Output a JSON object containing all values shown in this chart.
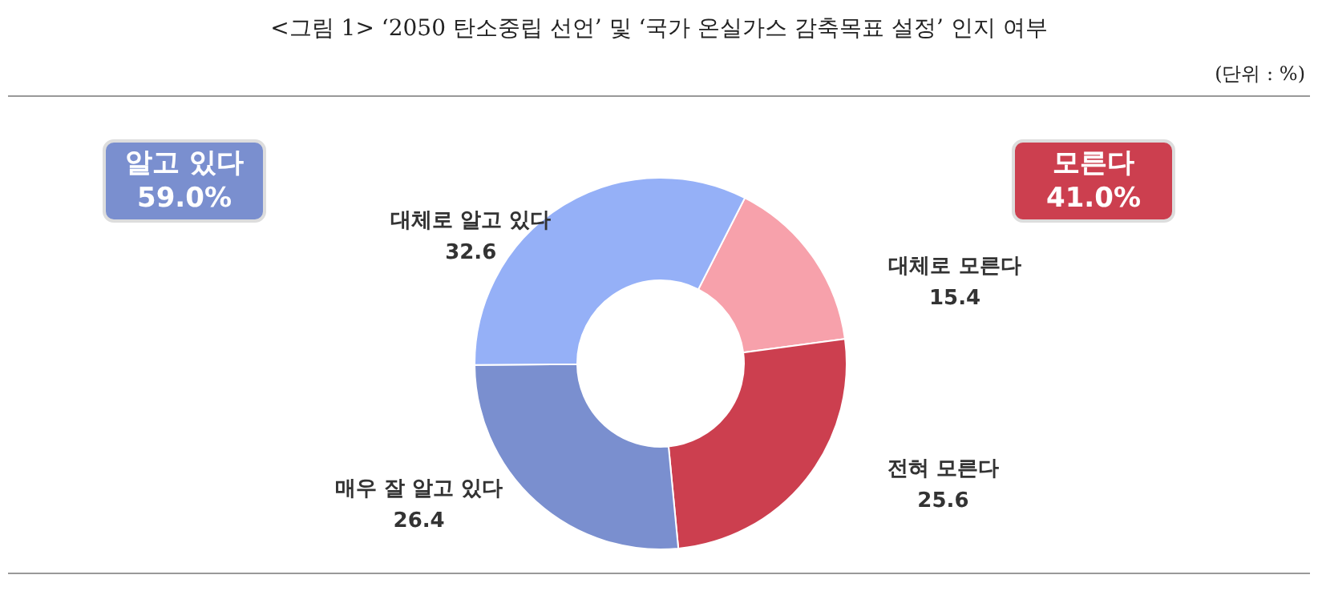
{
  "chart_data": {
    "type": "donut",
    "title": "<그림 1> ‘2050 탄소중립 선언’ 및 ‘국가 온실가스 감축목표 설정’ 인지 여부",
    "categories": [
      "대체로 모른다",
      "전혀 모른다",
      "매우 잘 알고 있다",
      "대체로 알고 있다"
    ],
    "values": [
      15.4,
      25.6,
      26.4,
      32.6
    ],
    "colors": [
      "#f7a1ab",
      "#cc3f4f",
      "#7a8fcf",
      "#95b0f7"
    ],
    "data_labels": true,
    "annotations": [
      "(단위 : %)",
      "알고 있다\n59.0%",
      "모른다\n41.0%"
    ]
  }
}
